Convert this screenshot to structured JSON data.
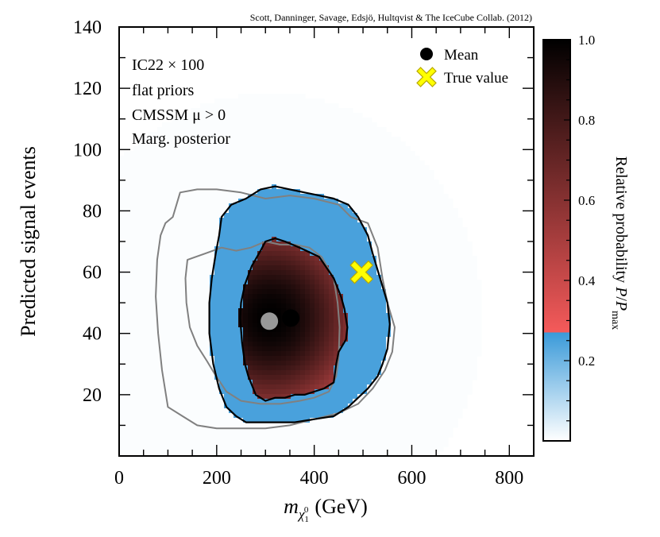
{
  "credit": "Scott, Danninger, Savage, Edsjö, Hultqvist & The IceCube Collab. (2012)",
  "annotations": [
    "IC22 × 100",
    "flat priors",
    "CMSSM μ > 0",
    "Marg. posterior"
  ],
  "legend": {
    "mean": "Mean",
    "true_value": "True value"
  },
  "chart_data": {
    "type": "heatmap",
    "xlabel": "m_χ₁⁰ (GeV)",
    "xlabel_main": "m",
    "xlabel_sub": "χ",
    "xlabel_subsub": "1",
    "xlabel_sup": "0",
    "xlabel_unit": "(GeV)",
    "ylabel": "Predicted signal events",
    "xlim": [
      0,
      850
    ],
    "ylim": [
      0,
      140
    ],
    "x_ticks": [
      0,
      200,
      400,
      600,
      800
    ],
    "y_ticks": [
      20,
      40,
      60,
      80,
      100,
      120,
      140
    ],
    "colorbar": {
      "label": "Relative probability P/P_max",
      "label_main": "Relative probability ",
      "range": [
        0,
        1
      ],
      "ticks": [
        0.2,
        0.4,
        0.6,
        0.8,
        1.0
      ],
      "tick_labels": [
        "0.2",
        "0.4",
        "0.6",
        "0.8",
        "1.0"
      ],
      "break_value": 0.27,
      "low_colors": [
        "#ffffff",
        "#3a9ad9"
      ],
      "high_colors": [
        "#f55a5a",
        "#000000"
      ]
    },
    "peak": {
      "x": 310,
      "y": 45
    },
    "mean_point": {
      "x": 352,
      "y": 45,
      "color": "#000000"
    },
    "prior_mean_point": {
      "x": 308,
      "y": 44,
      "color": "#999999"
    },
    "true_value": {
      "x": 497,
      "y": 60,
      "color": "#ffff00"
    },
    "contours": {
      "posterior_inner": [
        [
          300,
          70
        ],
        [
          320,
          71
        ],
        [
          340,
          70
        ],
        [
          370,
          68
        ],
        [
          410,
          65
        ],
        [
          440,
          58
        ],
        [
          455,
          52
        ],
        [
          462,
          48
        ],
        [
          468,
          42
        ],
        [
          465,
          38
        ],
        [
          450,
          34
        ],
        [
          445,
          30
        ],
        [
          440,
          24
        ],
        [
          420,
          22
        ],
        [
          400,
          21
        ],
        [
          380,
          20
        ],
        [
          360,
          20
        ],
        [
          340,
          19
        ],
        [
          320,
          19
        ],
        [
          300,
          18
        ],
        [
          280,
          20
        ],
        [
          265,
          26
        ],
        [
          258,
          30
        ],
        [
          252,
          37
        ],
        [
          248,
          45
        ],
        [
          250,
          50
        ],
        [
          258,
          56
        ],
        [
          272,
          62
        ],
        [
          290,
          67
        ]
      ],
      "posterior_outer": [
        [
          210,
          78
        ],
        [
          230,
          82
        ],
        [
          260,
          84
        ],
        [
          290,
          87
        ],
        [
          320,
          88
        ],
        [
          350,
          87
        ],
        [
          380,
          86
        ],
        [
          410,
          85
        ],
        [
          440,
          84
        ],
        [
          470,
          82
        ],
        [
          490,
          78
        ],
        [
          510,
          72
        ],
        [
          520,
          66
        ],
        [
          535,
          58
        ],
        [
          550,
          50
        ],
        [
          555,
          43
        ],
        [
          550,
          35
        ],
        [
          540,
          30
        ],
        [
          530,
          26
        ],
        [
          510,
          22
        ],
        [
          490,
          19
        ],
        [
          470,
          16
        ],
        [
          440,
          13
        ],
        [
          400,
          12
        ],
        [
          360,
          11
        ],
        [
          320,
          11
        ],
        [
          290,
          11
        ],
        [
          260,
          11
        ],
        [
          240,
          13
        ],
        [
          220,
          16
        ],
        [
          205,
          22
        ],
        [
          193,
          30
        ],
        [
          185,
          40
        ],
        [
          185,
          50
        ],
        [
          190,
          58
        ],
        [
          198,
          66
        ],
        [
          205,
          72
        ]
      ],
      "prior_inner": [
        [
          140,
          64
        ],
        [
          175,
          66
        ],
        [
          210,
          68
        ],
        [
          240,
          67
        ],
        [
          270,
          68
        ],
        [
          300,
          70
        ],
        [
          330,
          69
        ],
        [
          360,
          69
        ],
        [
          390,
          68
        ],
        [
          415,
          65
        ],
        [
          440,
          58
        ],
        [
          448,
          50
        ],
        [
          452,
          42
        ],
        [
          450,
          32
        ],
        [
          445,
          26
        ],
        [
          430,
          21
        ],
        [
          400,
          19
        ],
        [
          370,
          18
        ],
        [
          330,
          17
        ],
        [
          290,
          17
        ],
        [
          250,
          18
        ],
        [
          220,
          21
        ],
        [
          195,
          27
        ],
        [
          180,
          31
        ],
        [
          160,
          36
        ],
        [
          145,
          42
        ],
        [
          138,
          50
        ],
        [
          136,
          58
        ]
      ],
      "prior_outer": [
        [
          110,
          78
        ],
        [
          125,
          86
        ],
        [
          160,
          87
        ],
        [
          200,
          87
        ],
        [
          250,
          86
        ],
        [
          300,
          84
        ],
        [
          350,
          85
        ],
        [
          400,
          84
        ],
        [
          450,
          82
        ],
        [
          475,
          78
        ],
        [
          510,
          76
        ],
        [
          530,
          68
        ],
        [
          540,
          58
        ],
        [
          550,
          50
        ],
        [
          565,
          42
        ],
        [
          560,
          34
        ],
        [
          545,
          28
        ],
        [
          520,
          22
        ],
        [
          490,
          17
        ],
        [
          450,
          14
        ],
        [
          400,
          12
        ],
        [
          350,
          10
        ],
        [
          300,
          9
        ],
        [
          250,
          9
        ],
        [
          200,
          9
        ],
        [
          160,
          10
        ],
        [
          130,
          13
        ],
        [
          100,
          16
        ],
        [
          88,
          28
        ],
        [
          80,
          40
        ],
        [
          75,
          52
        ],
        [
          78,
          64
        ],
        [
          85,
          72
        ],
        [
          95,
          76
        ]
      ]
    }
  }
}
